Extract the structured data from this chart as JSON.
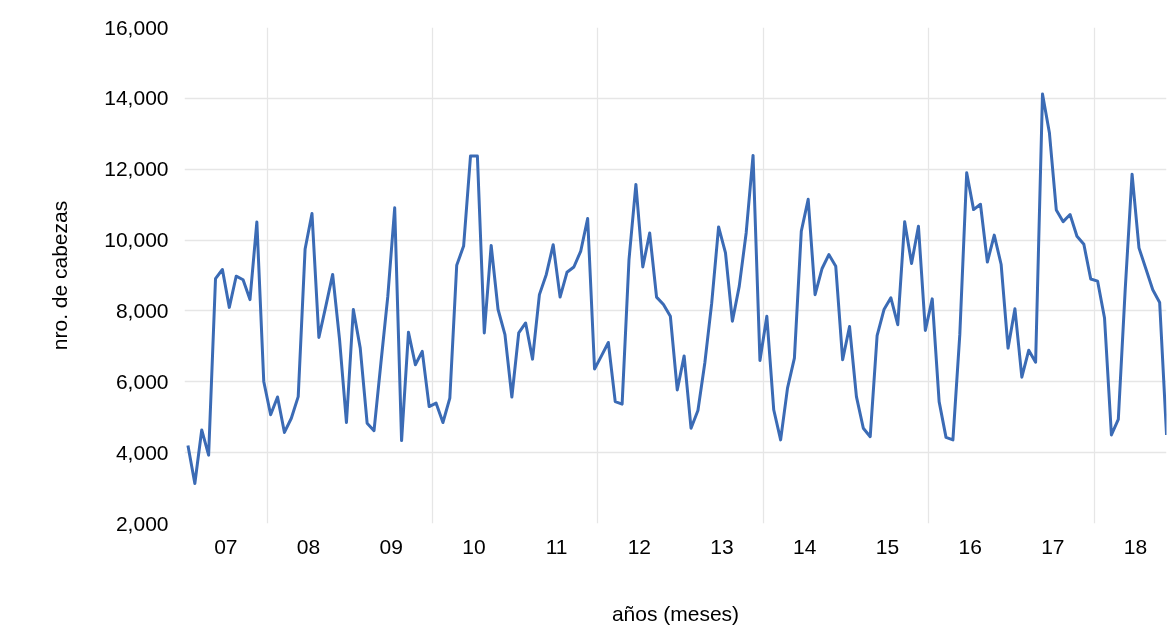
{
  "chart_data": {
    "type": "line",
    "xlabel": "años (meses)",
    "ylabel": "nro. de cabezas",
    "x": [
      "2007-01",
      "2007-02",
      "2007-03",
      "2007-04",
      "2007-05",
      "2007-06",
      "2007-07",
      "2007-08",
      "2007-09",
      "2007-10",
      "2007-11",
      "2007-12",
      "2008-01",
      "2008-02",
      "2008-03",
      "2008-04",
      "2008-05",
      "2008-06",
      "2008-07",
      "2008-08",
      "2008-09",
      "2008-10",
      "2008-11",
      "2008-12",
      "2009-01",
      "2009-02",
      "2009-03",
      "2009-04",
      "2009-05",
      "2009-06",
      "2009-07",
      "2009-08",
      "2009-09",
      "2009-10",
      "2009-11",
      "2009-12",
      "2010-01",
      "2010-02",
      "2010-03",
      "2010-04",
      "2010-05",
      "2010-06",
      "2010-07",
      "2010-08",
      "2010-09",
      "2010-10",
      "2010-11",
      "2010-12",
      "2011-01",
      "2011-02",
      "2011-03",
      "2011-04",
      "2011-05",
      "2011-06",
      "2011-07",
      "2011-08",
      "2011-09",
      "2011-10",
      "2011-11",
      "2011-12",
      "2012-01",
      "2012-02",
      "2012-03",
      "2012-04",
      "2012-05",
      "2012-06",
      "2012-07",
      "2012-08",
      "2012-09",
      "2012-10",
      "2012-11",
      "2012-12",
      "2013-01",
      "2013-02",
      "2013-03",
      "2013-04",
      "2013-05",
      "2013-06",
      "2013-07",
      "2013-08",
      "2013-09",
      "2013-10",
      "2013-11",
      "2013-12",
      "2014-01",
      "2014-02",
      "2014-03",
      "2014-04",
      "2014-05",
      "2014-06",
      "2014-07",
      "2014-08",
      "2014-09",
      "2014-10",
      "2014-11",
      "2014-12",
      "2015-01",
      "2015-02",
      "2015-03",
      "2015-04",
      "2015-05",
      "2015-06",
      "2015-07",
      "2015-08",
      "2015-09",
      "2015-10",
      "2015-11",
      "2015-12",
      "2016-01",
      "2016-02",
      "2016-03",
      "2016-04",
      "2016-05",
      "2016-06",
      "2016-07",
      "2016-08",
      "2016-09",
      "2016-10",
      "2016-11",
      "2016-12",
      "2017-01",
      "2017-02",
      "2017-03",
      "2017-04",
      "2017-05",
      "2017-06",
      "2017-07",
      "2017-08",
      "2017-09",
      "2017-10",
      "2017-11",
      "2017-12",
      "2018-01",
      "2018-02",
      "2018-03",
      "2018-04",
      "2018-05",
      "2018-06",
      "2018-07",
      "2018-08",
      "2018-09",
      "2018-10",
      "2018-11"
    ],
    "series": [
      {
        "color": "#3b6bb5",
        "values": [
          4200,
          3130,
          4640,
          3930,
          8910,
          9170,
          8100,
          8980,
          8880,
          8320,
          10510,
          6010,
          5070,
          5570,
          4570,
          4970,
          5580,
          9750,
          10750,
          7250,
          8130,
          9030,
          7190,
          4850,
          8040,
          6950,
          4830,
          4620,
          6530,
          8410,
          10910,
          4340,
          7400,
          6480,
          6860,
          5300,
          5400,
          4850,
          5540,
          9290,
          9830,
          12370,
          12370,
          7380,
          9850,
          8040,
          7330,
          5570,
          7380,
          7660,
          6640,
          8460,
          9030,
          9870,
          8390,
          9090,
          9240,
          9690,
          10610,
          6360,
          6730,
          7110,
          5440,
          5370,
          9450,
          11570,
          9240,
          10200,
          8390,
          8180,
          7850,
          5770,
          6730,
          4690,
          5190,
          6530,
          8220,
          10370,
          9640,
          7710,
          8700,
          10200,
          12390,
          6600,
          7850,
          5210,
          4360,
          5820,
          6670,
          10250,
          11150,
          8460,
          9190,
          9590,
          9260,
          6620,
          7560,
          5580,
          4690,
          4450,
          7300,
          8040,
          8370,
          7610,
          10520,
          9340,
          10390,
          7450,
          8340,
          5440,
          4430,
          4360,
          7330,
          11900,
          10860,
          11010,
          9380,
          10140,
          9310,
          6950,
          8060,
          6130,
          6890,
          6550,
          14120,
          13030,
          10850,
          10520,
          10720,
          10110,
          9880,
          8900,
          8840,
          7800,
          4500,
          4940,
          8600,
          11860,
          9780,
          9190,
          8600,
          8240,
          4500
        ]
      }
    ],
    "ylim": [
      2000,
      16000
    ],
    "yticks": [
      {
        "value": 2000,
        "label": "2,000"
      },
      {
        "value": 4000,
        "label": "4,000"
      },
      {
        "value": 6000,
        "label": "6,000"
      },
      {
        "value": 8000,
        "label": "8,000"
      },
      {
        "value": 10000,
        "label": "10,000"
      },
      {
        "value": 12000,
        "label": "12,000"
      },
      {
        "value": 14000,
        "label": "14,000"
      },
      {
        "value": 16000,
        "label": "16,000"
      }
    ],
    "xlim": [
      "2007-01-01",
      "2018-11-16"
    ],
    "xticks": [
      {
        "value": "2007-07-01",
        "label": "07"
      },
      {
        "value": "2008-01-01",
        "label": null
      },
      {
        "value": "2008-07-01",
        "label": "08"
      },
      {
        "value": "2009-07-01",
        "label": "09"
      },
      {
        "value": "2010-01-01",
        "label": null
      },
      {
        "value": "2010-07-01",
        "label": "10"
      },
      {
        "value": "2011-07-01",
        "label": "11"
      },
      {
        "value": "2012-01-01",
        "label": null
      },
      {
        "value": "2012-07-01",
        "label": "12"
      },
      {
        "value": "2013-07-01",
        "label": "13"
      },
      {
        "value": "2014-01-01",
        "label": null
      },
      {
        "value": "2014-07-01",
        "label": "14"
      },
      {
        "value": "2015-07-01",
        "label": "15"
      },
      {
        "value": "2016-01-01",
        "label": null
      },
      {
        "value": "2016-07-01",
        "label": "16"
      },
      {
        "value": "2017-07-01",
        "label": "17"
      },
      {
        "value": "2018-01-01",
        "label": null
      },
      {
        "value": "2018-07-01",
        "label": "18"
      }
    ],
    "grid": true,
    "marker": "none",
    "line_style": "solid"
  }
}
